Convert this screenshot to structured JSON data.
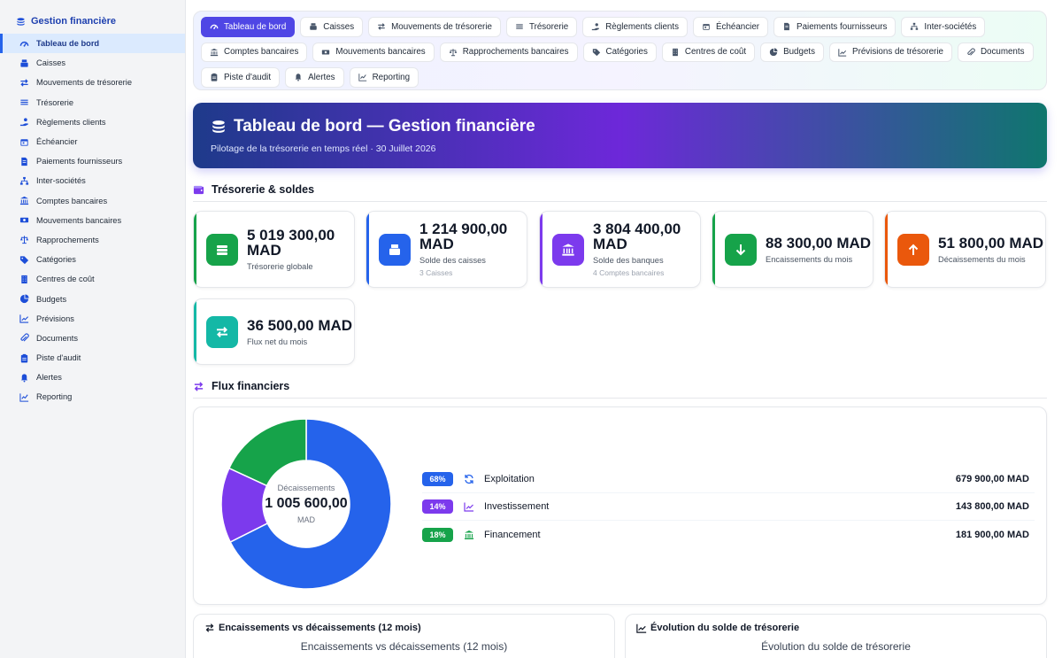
{
  "sidebar": {
    "brand": "Gestion financière",
    "items": [
      {
        "label": "Tableau de bord",
        "icon": "gauge-icon"
      },
      {
        "label": "Caisses",
        "icon": "cash-register-icon"
      },
      {
        "label": "Mouvements de trésorerie",
        "icon": "arrows-exchange-icon"
      },
      {
        "label": "Trésorerie",
        "icon": "lines-icon"
      },
      {
        "label": "Règlements clients",
        "icon": "hand-coin-icon"
      },
      {
        "label": "Échéancier",
        "icon": "calendar-icon"
      },
      {
        "label": "Paiements fournisseurs",
        "icon": "invoice-icon"
      },
      {
        "label": "Inter-sociétés",
        "icon": "network-icon"
      },
      {
        "label": "Comptes bancaires",
        "icon": "bank-icon"
      },
      {
        "label": "Mouvements bancaires",
        "icon": "money-bill-icon"
      },
      {
        "label": "Rapprochements",
        "icon": "scale-icon"
      },
      {
        "label": "Catégories",
        "icon": "tags-icon"
      },
      {
        "label": "Centres de coût",
        "icon": "building-icon"
      },
      {
        "label": "Budgets",
        "icon": "pie-icon"
      },
      {
        "label": "Prévisions",
        "icon": "trend-icon"
      },
      {
        "label": "Documents",
        "icon": "paperclip-icon"
      },
      {
        "label": "Piste d'audit",
        "icon": "clipboard-icon"
      },
      {
        "label": "Alertes",
        "icon": "bell-icon"
      },
      {
        "label": "Reporting",
        "icon": "chart-icon"
      }
    ]
  },
  "topnav": {
    "row1": [
      {
        "label": "Tableau de bord",
        "icon": "gauge-icon",
        "active": true
      },
      {
        "label": "Caisses",
        "icon": "cash-register-icon"
      },
      {
        "label": "Mouvements de trésorerie",
        "icon": "arrows-exchange-icon"
      },
      {
        "label": "Trésorerie",
        "icon": "lines-icon"
      },
      {
        "label": "Règlements clients",
        "icon": "hand-coin-icon"
      },
      {
        "label": "Échéancier",
        "icon": "calendar-icon"
      },
      {
        "label": "Paiements fournisseurs",
        "icon": "invoice-icon"
      },
      {
        "label": "Inter-sociétés",
        "icon": "network-icon"
      }
    ],
    "row2": [
      {
        "label": "Comptes bancaires",
        "icon": "bank-icon"
      },
      {
        "label": "Mouvements bancaires",
        "icon": "money-bill-icon"
      },
      {
        "label": "Rapprochements bancaires",
        "icon": "scale-icon"
      },
      {
        "label": "Catégories",
        "icon": "tags-icon"
      },
      {
        "label": "Centres de coût",
        "icon": "building-icon"
      },
      {
        "label": "Budgets",
        "icon": "pie-icon"
      },
      {
        "label": "Prévisions de trésorerie",
        "icon": "trend-icon"
      },
      {
        "label": "Documents",
        "icon": "paperclip-icon"
      }
    ],
    "row3": [
      {
        "label": "Piste d'audit",
        "icon": "clipboard-icon"
      },
      {
        "label": "Alertes",
        "icon": "bell-icon"
      },
      {
        "label": "Reporting",
        "icon": "chart-icon"
      }
    ]
  },
  "hero": {
    "title": "Tableau de bord — Gestion financière",
    "subtitle": "Pilotage de la trésorerie en temps réel · 30 Juillet 2026"
  },
  "sections": {
    "treasury": "Trésorerie & soldes",
    "flux": "Flux financiers"
  },
  "kpis": [
    {
      "value": "5 019 300,00 MAD",
      "label": "Trésorerie globale",
      "sub": "",
      "color": "#16a34a",
      "icon": "stack-icon"
    },
    {
      "value": "1 214 900,00 MAD",
      "label": "Solde des caisses",
      "sub": "3 Caisses",
      "color": "#2563eb",
      "icon": "cash-register-icon"
    },
    {
      "value": "3 804 400,00 MAD",
      "label": "Solde des banques",
      "sub": "4 Comptes bancaires",
      "color": "#7c3aed",
      "icon": "bank-icon"
    },
    {
      "value": "88 300,00 MAD",
      "label": "Encaissements du mois",
      "sub": "",
      "color": "#16a34a",
      "icon": "arrow-down-icon"
    },
    {
      "value": "51 800,00 MAD",
      "label": "Décaissements du mois",
      "sub": "",
      "color": "#ea580c",
      "icon": "arrow-up-icon"
    },
    {
      "value": "36 500,00 MAD",
      "label": "Flux net du mois",
      "sub": "",
      "color": "#14b8a6",
      "icon": "arrows-exchange-icon"
    }
  ],
  "flux": {
    "center_label": "Décaissements",
    "center_value": "1 005 600,00",
    "center_unit": "MAD",
    "items": [
      {
        "pct": "68%",
        "name": "Exploitation",
        "value": "679 900,00 MAD",
        "color": "#2563eb",
        "share": 0.676,
        "icon": "refresh-icon"
      },
      {
        "pct": "14%",
        "name": "Investissement",
        "value": "143 800,00 MAD",
        "color": "#7c3aed",
        "share": 0.143,
        "icon": "trend-icon"
      },
      {
        "pct": "18%",
        "name": "Financement",
        "value": "181 900,00 MAD",
        "color": "#16a34a",
        "share": 0.181,
        "icon": "bank-icon"
      }
    ]
  },
  "bottom": {
    "left_title": "Encaissements vs décaissements (12 mois)",
    "left_sub": "Encaissements vs décaissements (12 mois)",
    "right_title": "Évolution du solde de trésorerie",
    "right_sub": "Évolution du solde de trésorerie"
  }
}
